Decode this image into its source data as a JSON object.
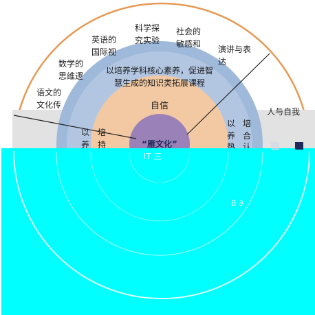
{
  "diagram": {
    "outer_ring_labels": [
      {
        "id": "chinese",
        "lines": [
          "语文的",
          "文化传"
        ]
      },
      {
        "id": "math",
        "lines": [
          "数学的",
          "思维逻"
        ]
      },
      {
        "id": "english",
        "lines": [
          "英语的",
          "国际视"
        ]
      },
      {
        "id": "science",
        "lines": [
          "科学探",
          "究实验"
        ]
      },
      {
        "id": "society",
        "lines": [
          "社会的",
          "敏感和"
        ]
      },
      {
        "id": "speech",
        "lines": [
          "演讲与表",
          "达"
        ]
      }
    ],
    "side_label": "人与自我",
    "band_labels": {
      "course_title_lines": [
        "以培养学科核心素养，促进智",
        "慧生成的知识类拓展课程"
      ],
      "left_vertical": [
        "以",
        "培",
        "养",
        "持"
      ],
      "right_vertical_col1": [
        "以",
        "养",
        "热"
      ],
      "right_vertical_col2": [
        "培",
        "合",
        "认"
      ]
    },
    "inner_ring_label": "自信",
    "core_label": "“雁文化”",
    "core_sub_label": "IT 三",
    "stray_label": "8 ∂",
    "colors": {
      "outer_arc": "#e59a55",
      "outer_gray_band": "#e2e2e2",
      "blue_ring": "#9fb9da",
      "blue_ring_inner": "#b6c9e4",
      "peach_ring": "#f2c9a2",
      "core": "#9a82b8",
      "cyan_overlay": "#00ffff",
      "text_dark": "#222222",
      "navy": "#1f2a5a"
    }
  }
}
